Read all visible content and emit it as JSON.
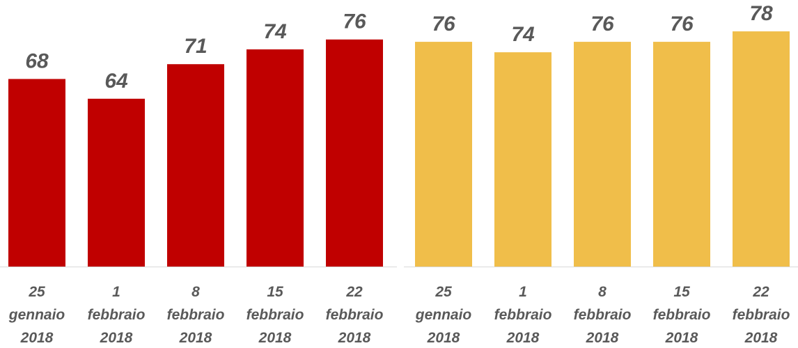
{
  "chart_data": [
    {
      "type": "bar",
      "categories": [
        "25 gennaio 2018",
        "1 febbraio 2018",
        "8 febbraio 2018",
        "15 febbraio 2018",
        "22 febbraio 2018"
      ],
      "values": [
        68,
        64,
        71,
        74,
        76
      ],
      "color": "#c00000",
      "ylim": [
        30,
        84
      ]
    },
    {
      "type": "bar",
      "categories": [
        "25 gennaio 2018",
        "1 febbraio 2018",
        "8 febbraio 2018",
        "15 febbraio 2018",
        "22 febbraio 2018"
      ],
      "values": [
        76,
        74,
        76,
        76,
        78
      ],
      "color": "#f0be4a",
      "ylim": [
        33,
        84
      ]
    }
  ]
}
